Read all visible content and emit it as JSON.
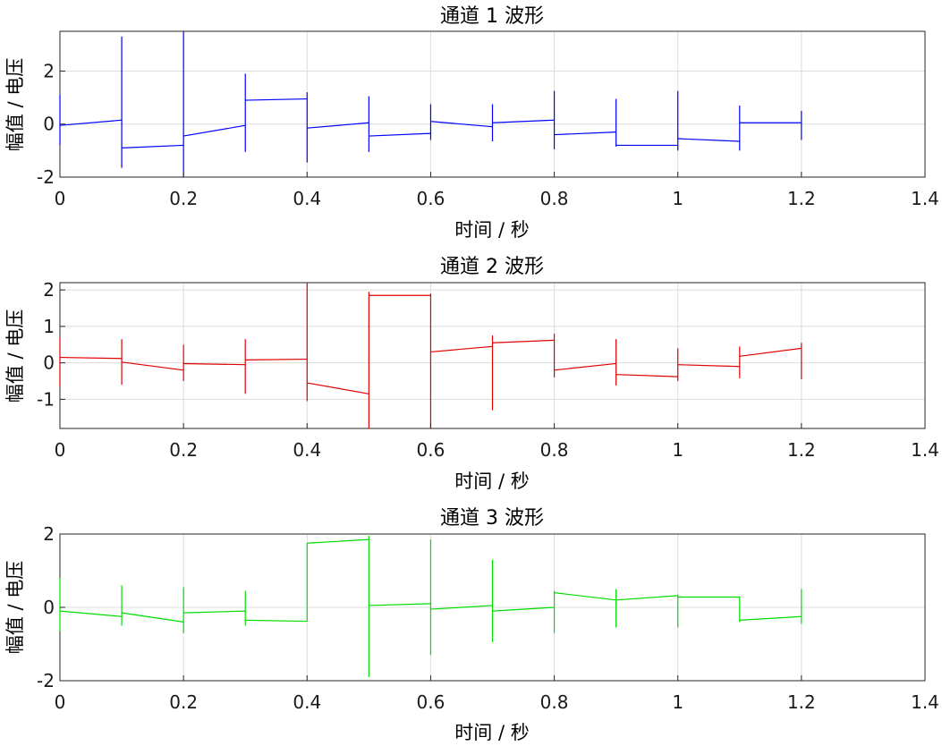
{
  "chart_data": [
    {
      "type": "line",
      "title": "通道 1 波形",
      "xlabel": "时间 / 秒",
      "ylabel": "幅值 / 电压",
      "xlim": [
        0,
        1.4
      ],
      "ylim": [
        -2,
        3.5
      ],
      "xticks": [
        0,
        0.2,
        0.4,
        0.6,
        0.8,
        1,
        1.2,
        1.4
      ],
      "xtick_labels": [
        "0",
        "0.2",
        "0.4",
        "0.6",
        "0.8",
        "1",
        "1.2",
        "1.4"
      ],
      "yticks": [
        -2,
        0,
        2
      ],
      "ytick_labels": [
        "-2",
        "0",
        "2"
      ],
      "grid": true,
      "color": "#0000ff",
      "segments": [
        {
          "x0": 0.0,
          "x1": 0.1,
          "y0": -0.05,
          "y1": 0.15,
          "spike": [
            -0.8,
            1.1
          ]
        },
        {
          "x0": 0.1,
          "x1": 0.2,
          "y0": -0.9,
          "y1": -0.8,
          "spike": [
            -1.65,
            3.3
          ]
        },
        {
          "x0": 0.2,
          "x1": 0.3,
          "y0": -0.45,
          "y1": -0.05,
          "spike": [
            -2.0,
            3.5
          ]
        },
        {
          "x0": 0.3,
          "x1": 0.4,
          "y0": 0.9,
          "y1": 0.95,
          "spike": [
            -1.05,
            1.9
          ]
        },
        {
          "x0": 0.4,
          "x1": 0.5,
          "y0": -0.15,
          "y1": 0.05,
          "spike": [
            -1.45,
            1.2
          ]
        },
        {
          "x0": 0.5,
          "x1": 0.6,
          "y0": -0.45,
          "y1": -0.35,
          "spike": [
            -1.05,
            1.05
          ]
        },
        {
          "x0": 0.6,
          "x1": 0.7,
          "y0": 0.1,
          "y1": -0.1,
          "spike": [
            -0.6,
            0.75
          ]
        },
        {
          "x0": 0.7,
          "x1": 0.8,
          "y0": 0.05,
          "y1": 0.15,
          "spike": [
            -0.65,
            0.75
          ]
        },
        {
          "x0": 0.8,
          "x1": 0.9,
          "y0": -0.4,
          "y1": -0.3,
          "spike": [
            -0.95,
            1.25
          ]
        },
        {
          "x0": 0.9,
          "x1": 1.0,
          "y0": -0.8,
          "y1": -0.8,
          "spike": [
            -0.85,
            0.95
          ]
        },
        {
          "x0": 1.0,
          "x1": 1.1,
          "y0": -0.55,
          "y1": -0.65,
          "spike": [
            -1.0,
            1.25
          ]
        },
        {
          "x0": 1.1,
          "x1": 1.2,
          "y0": 0.05,
          "y1": 0.05,
          "spike": [
            -1.0,
            0.7
          ]
        },
        {
          "x0": 1.2,
          "x1": 1.2,
          "y0": 0.05,
          "y1": 0.05,
          "spike": [
            -0.6,
            0.5
          ]
        }
      ]
    },
    {
      "type": "line",
      "title": "通道 2 波形",
      "xlabel": "时间 / 秒",
      "ylabel": "幅值 / 电压",
      "xlim": [
        0,
        1.4
      ],
      "ylim": [
        -1.8,
        2.2
      ],
      "xticks": [
        0,
        0.2,
        0.4,
        0.6,
        0.8,
        1,
        1.2,
        1.4
      ],
      "xtick_labels": [
        "0",
        "0.2",
        "0.4",
        "0.6",
        "0.8",
        "1",
        "1.2",
        "1.4"
      ],
      "yticks": [
        -1,
        0,
        1,
        2
      ],
      "ytick_labels": [
        "-1",
        "0",
        "1",
        "2"
      ],
      "grid": true,
      "color": "#e00000",
      "segments": [
        {
          "x0": 0.0,
          "x1": 0.1,
          "y0": 0.15,
          "y1": 0.12,
          "spike": [
            -0.65,
            0.7
          ]
        },
        {
          "x0": 0.1,
          "x1": 0.2,
          "y0": 0.02,
          "y1": -0.2,
          "spike": [
            -0.6,
            0.65
          ]
        },
        {
          "x0": 0.2,
          "x1": 0.3,
          "y0": -0.02,
          "y1": -0.05,
          "spike": [
            -0.5,
            0.5
          ]
        },
        {
          "x0": 0.3,
          "x1": 0.4,
          "y0": 0.08,
          "y1": 0.1,
          "spike": [
            -0.85,
            0.65
          ]
        },
        {
          "x0": 0.4,
          "x1": 0.5,
          "y0": -0.55,
          "y1": -0.85,
          "spike": [
            -1.05,
            2.2
          ]
        },
        {
          "x0": 0.5,
          "x1": 0.6,
          "y0": 1.85,
          "y1": 1.85,
          "spike": [
            -1.8,
            1.95
          ]
        },
        {
          "x0": 0.6,
          "x1": 0.7,
          "y0": 0.3,
          "y1": 0.45,
          "spike": [
            -1.8,
            1.9
          ]
        },
        {
          "x0": 0.7,
          "x1": 0.8,
          "y0": 0.55,
          "y1": 0.62,
          "spike": [
            -1.3,
            0.75
          ]
        },
        {
          "x0": 0.8,
          "x1": 0.9,
          "y0": -0.2,
          "y1": -0.02,
          "spike": [
            -0.4,
            0.8
          ]
        },
        {
          "x0": 0.9,
          "x1": 1.0,
          "y0": -0.32,
          "y1": -0.38,
          "spike": [
            -0.62,
            0.65
          ]
        },
        {
          "x0": 1.0,
          "x1": 1.1,
          "y0": -0.05,
          "y1": -0.1,
          "spike": [
            -0.5,
            0.4
          ]
        },
        {
          "x0": 1.1,
          "x1": 1.2,
          "y0": 0.18,
          "y1": 0.4,
          "spike": [
            -0.42,
            0.45
          ]
        },
        {
          "x0": 1.2,
          "x1": 1.2,
          "y0": 0.4,
          "y1": 0.4,
          "spike": [
            -0.45,
            0.55
          ]
        }
      ]
    },
    {
      "type": "line",
      "title": "通道 3 波形",
      "xlabel": "时间 / 秒",
      "ylabel": "幅值 / 电压",
      "xlim": [
        0,
        1.4
      ],
      "ylim": [
        -2,
        2
      ],
      "xticks": [
        0,
        0.2,
        0.4,
        0.6,
        0.8,
        1,
        1.2,
        1.4
      ],
      "xtick_labels": [
        "0",
        "0.2",
        "0.4",
        "0.6",
        "0.8",
        "1",
        "1.2",
        "1.4"
      ],
      "yticks": [
        -2,
        0,
        2
      ],
      "ytick_labels": [
        "-2",
        "0",
        "2"
      ],
      "grid": true,
      "color": "#00dd00",
      "segments": [
        {
          "x0": 0.0,
          "x1": 0.1,
          "y0": -0.1,
          "y1": -0.25,
          "spike": [
            -0.65,
            0.8
          ]
        },
        {
          "x0": 0.1,
          "x1": 0.2,
          "y0": -0.15,
          "y1": -0.4,
          "spike": [
            -0.5,
            0.6
          ]
        },
        {
          "x0": 0.2,
          "x1": 0.3,
          "y0": -0.15,
          "y1": -0.1,
          "spike": [
            -0.7,
            0.55
          ]
        },
        {
          "x0": 0.3,
          "x1": 0.4,
          "y0": -0.35,
          "y1": -0.38,
          "spike": [
            -0.5,
            0.45
          ]
        },
        {
          "x0": 0.4,
          "x1": 0.5,
          "y0": 1.75,
          "y1": 1.85,
          "spike": [
            -0.38,
            1.75
          ]
        },
        {
          "x0": 0.5,
          "x1": 0.6,
          "y0": 0.05,
          "y1": 0.1,
          "spike": [
            -1.9,
            1.95
          ]
        },
        {
          "x0": 0.6,
          "x1": 0.7,
          "y0": -0.05,
          "y1": 0.05,
          "spike": [
            -1.3,
            1.85
          ]
        },
        {
          "x0": 0.7,
          "x1": 0.8,
          "y0": -0.1,
          "y1": 0.0,
          "spike": [
            -0.95,
            1.3
          ]
        },
        {
          "x0": 0.8,
          "x1": 0.9,
          "y0": 0.4,
          "y1": 0.2,
          "spike": [
            -0.7,
            0.45
          ]
        },
        {
          "x0": 0.9,
          "x1": 1.0,
          "y0": 0.2,
          "y1": 0.32,
          "spike": [
            -0.55,
            0.5
          ]
        },
        {
          "x0": 1.0,
          "x1": 1.1,
          "y0": 0.28,
          "y1": 0.28,
          "spike": [
            -0.55,
            0.35
          ]
        },
        {
          "x0": 1.1,
          "x1": 1.2,
          "y0": -0.35,
          "y1": -0.25,
          "spike": [
            -0.4,
            0.3
          ]
        },
        {
          "x0": 1.2,
          "x1": 1.2,
          "y0": -0.25,
          "y1": -0.25,
          "spike": [
            -0.45,
            0.5
          ]
        }
      ]
    }
  ]
}
